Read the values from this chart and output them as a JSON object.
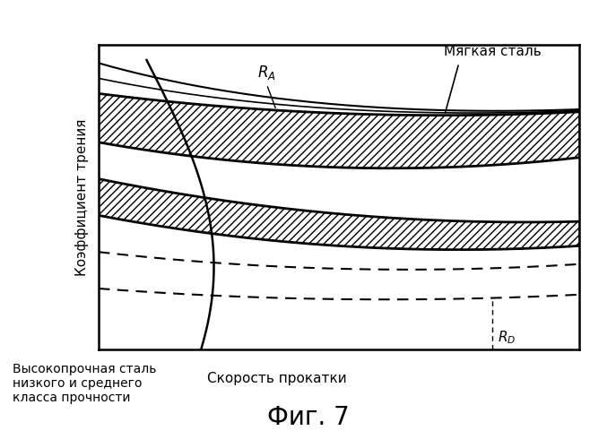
{
  "ylabel": "Коэффициент трения",
  "xlabel": "Скорость прокатки",
  "label_mild_steel": "Мягкая сталь",
  "label_high_strength": "Высокопрочная сталь\nнизкого и среднего\nкласса прочности",
  "fig_label": "Фиг. 7",
  "bg_color": "#ffffff",
  "line_color": "#000000",
  "hatch_color": "#000000",
  "dashed_color": "#000000",
  "RA_label": "$R_A$",
  "RD_label": "$R_D$"
}
